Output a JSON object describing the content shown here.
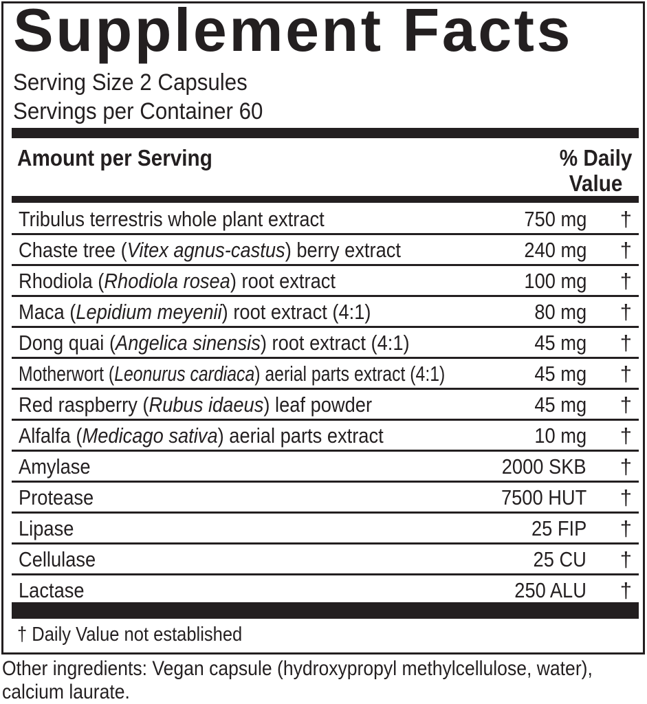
{
  "title": "Supplement Facts",
  "serving_size": "Serving Size 2 Capsules",
  "servings_per_container": "Servings per Container 60",
  "header": {
    "amount_label": "Amount per Serving",
    "dv_line1": "% Daily",
    "dv_line2": "Value"
  },
  "rows": [
    {
      "pre": "Tribulus terrestris whole plant extract",
      "it": "",
      "post": "",
      "amount": "750 mg",
      "dv": "†"
    },
    {
      "pre": "Chaste tree (",
      "it": "Vitex agnus-castus",
      "post": ") berry extract",
      "amount": "240 mg",
      "dv": "†"
    },
    {
      "pre": "Rhodiola (",
      "it": "Rhodiola rosea",
      "post": ") root extract",
      "amount": "100 mg",
      "dv": "†"
    },
    {
      "pre": "Maca (",
      "it": "Lepidium meyenii",
      "post": ") root extract (4:1)",
      "amount": "80 mg",
      "dv": "†"
    },
    {
      "pre": "Dong quai (",
      "it": "Angelica sinensis",
      "post": ") root extract (4:1)",
      "amount": "45 mg",
      "dv": "†"
    },
    {
      "pre": "Motherwort (",
      "it": "Leonurus cardiaca",
      "post": ") aerial parts extract (4:1)",
      "amount": "45 mg",
      "dv": "†"
    },
    {
      "pre": "Red raspberry (",
      "it": "Rubus idaeus",
      "post": ") leaf powder",
      "amount": "45 mg",
      "dv": "†"
    },
    {
      "pre": "Alfalfa (",
      "it": "Medicago sativa",
      "post": ") aerial parts extract",
      "amount": "10 mg",
      "dv": "†"
    },
    {
      "pre": "Amylase",
      "it": "",
      "post": "",
      "amount": "2000 SKB",
      "dv": "†"
    },
    {
      "pre": "Protease",
      "it": "",
      "post": "",
      "amount": "7500 HUT",
      "dv": "†"
    },
    {
      "pre": "Lipase",
      "it": "",
      "post": "",
      "amount": "25 FIP",
      "dv": "†"
    },
    {
      "pre": "Cellulase",
      "it": "",
      "post": "",
      "amount": "25 CU",
      "dv": "†"
    },
    {
      "pre": "Lactase",
      "it": "",
      "post": "",
      "amount": "250 ALU",
      "dv": "†"
    }
  ],
  "footnote": "† Daily Value not established",
  "other_ingredients": "Other ingredients: Vegan capsule (hydroxypropyl methylcellulose, water), calcium laurate."
}
